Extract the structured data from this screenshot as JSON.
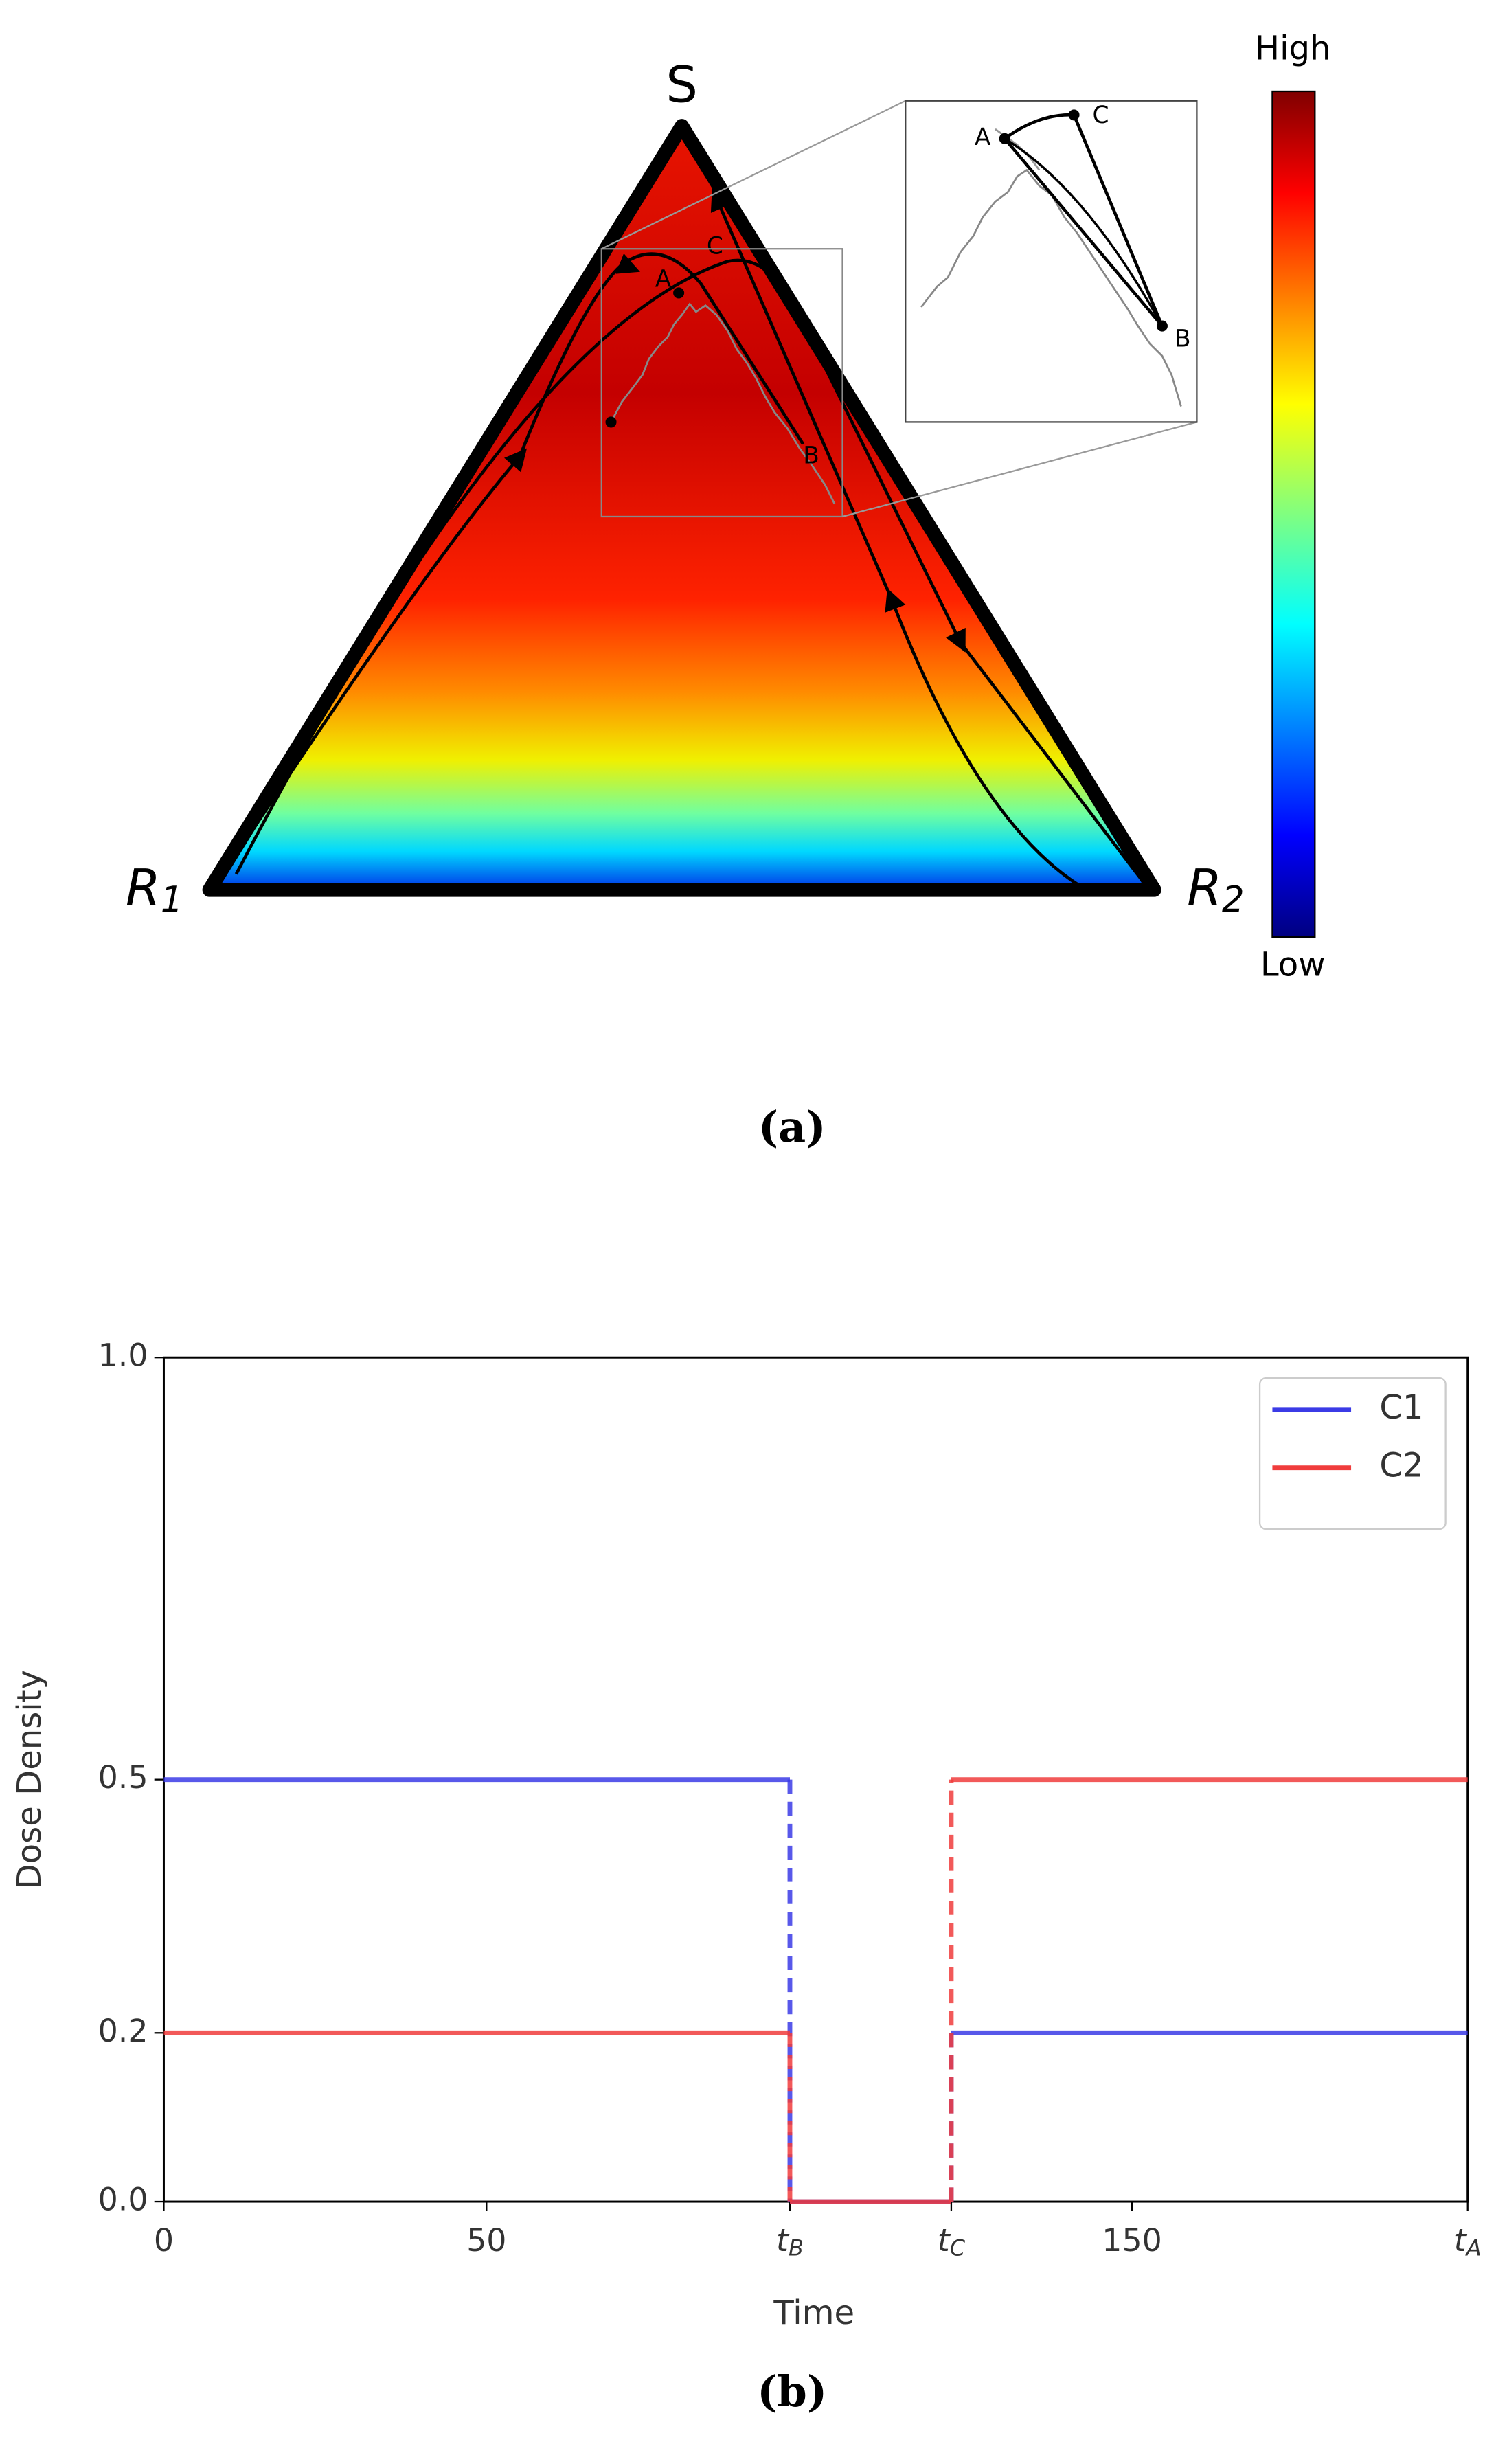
{
  "chart_data": [
    {
      "type": "ternary",
      "vertex_labels": [
        "S",
        "R1",
        "R2"
      ],
      "point_labels": [
        "A",
        "B",
        "C"
      ],
      "inset_point_labels": [
        "A",
        "B",
        "C"
      ],
      "colorbar_labels": [
        "High",
        "Low"
      ],
      "panel_label": "(a)"
    },
    {
      "type": "line",
      "panel_label": "(b)",
      "xlabel": "Time",
      "ylabel": "Dose Density",
      "x": [
        0,
        97,
        97,
        122,
        122,
        202
      ],
      "series": [
        {
          "name": "C1",
          "color": "#3b3be6",
          "values": [
            0.5,
            0.5,
            0,
            0,
            0.2,
            0.2
          ]
        },
        {
          "name": "C2",
          "color": "#f03c3c",
          "values": [
            0.2,
            0.2,
            0,
            0,
            0.5,
            0.5
          ]
        }
      ],
      "xlim": [
        0,
        202
      ],
      "ylim": [
        0,
        1
      ],
      "xticks": [
        0,
        50,
        {
          "value": 97,
          "label": "tB"
        },
        {
          "value": 122,
          "label": "tC"
        },
        150,
        {
          "value": 202,
          "label": "tA"
        }
      ],
      "yticks": [
        {
          "value": 0,
          "label": "0.0"
        },
        {
          "value": 0.2,
          "label": "0.2"
        },
        {
          "value": 0.5,
          "label": "0.5"
        },
        {
          "value": 1,
          "label": "1.0"
        }
      ],
      "legend": "upper right",
      "grid": false
    }
  ]
}
